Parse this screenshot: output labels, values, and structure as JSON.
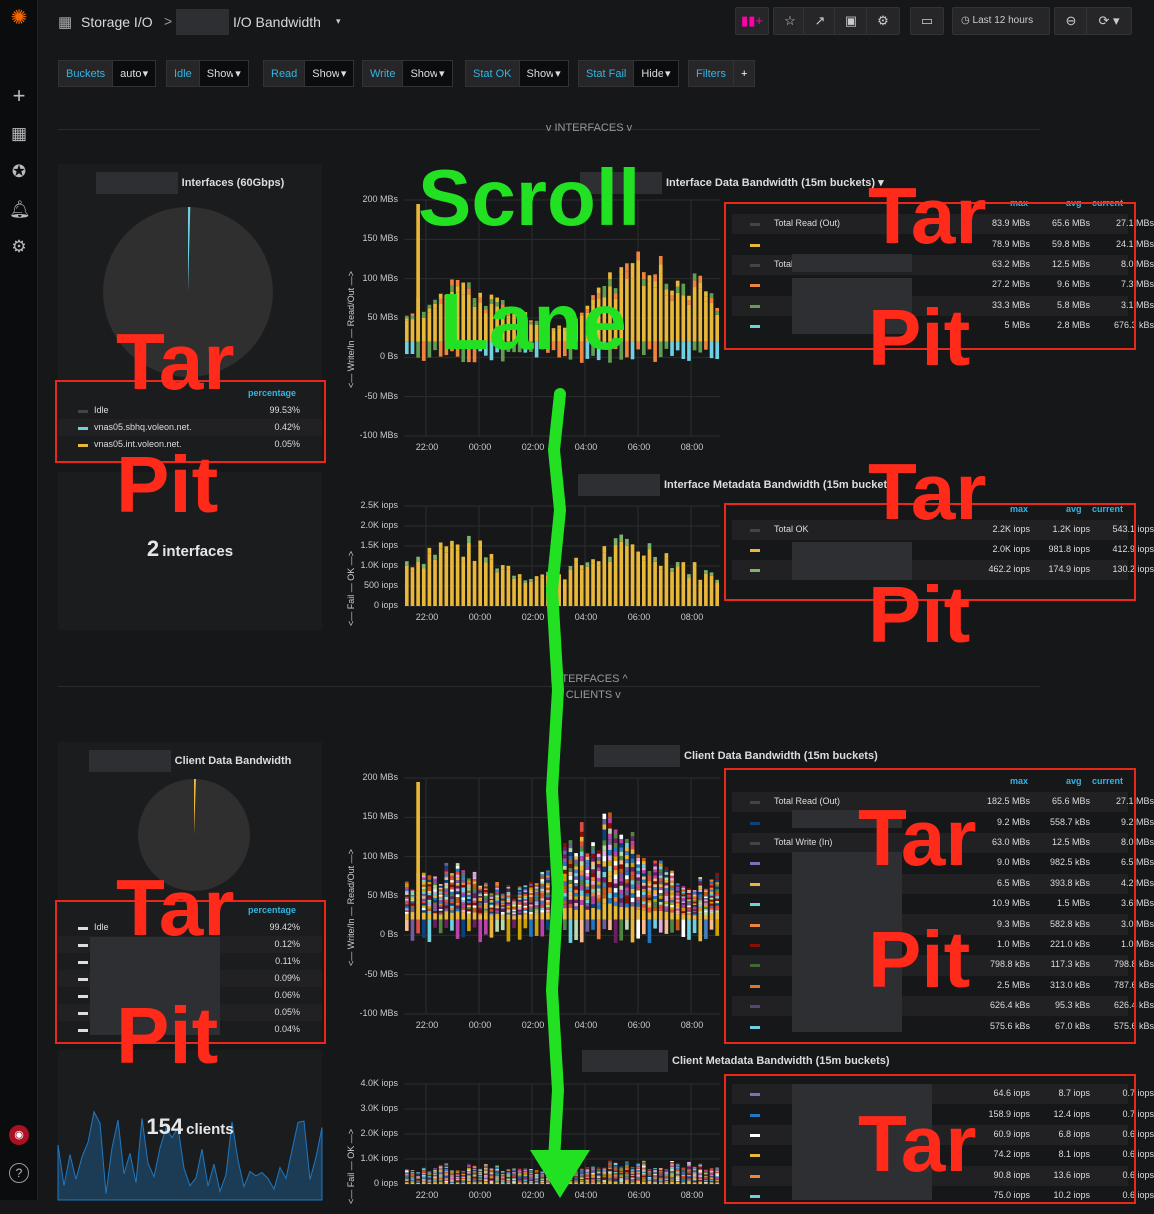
{
  "topbar": {
    "breadcrumb": "Storage I/O",
    "separator": ">",
    "title": "I/O Bandwidth",
    "time_range": "Last 12 hours"
  },
  "variables": [
    {
      "label": "Buckets",
      "value": "auto"
    },
    {
      "label": "Idle",
      "value": "Show"
    },
    {
      "label": "Read",
      "value": "Show"
    },
    {
      "label": "Write",
      "value": "Show"
    },
    {
      "label": "Stat OK",
      "value": "Show"
    },
    {
      "label": "Stat Fail",
      "value": "Hide"
    },
    {
      "label": "Filters",
      "value": "+"
    }
  ],
  "rows": {
    "interfaces_open": "v INTERFACES v",
    "interfaces_closed": "INTERFACES ^",
    "clients": "v CLIENTS v"
  },
  "interfaces": {
    "pie_title": "Interfaces (60Gbps)",
    "pie_legend_header": "percentage",
    "pie_legend": [
      {
        "name": "Idle",
        "value": "99.53%",
        "color": "#444444"
      },
      {
        "name": "vnas05.sbhq.voleon.net.",
        "value": "0.42%",
        "color": "#6ed0e0"
      },
      {
        "name": "vnas05.int.voleon.net.",
        "value": "0.05%",
        "color": "#eab839"
      }
    ],
    "stat_value": "2",
    "stat_unit": "interfaces",
    "data_title": "Interface Data Bandwidth (15m buckets)",
    "data_yticks": [
      "200 MBs",
      "150 MBs",
      "100 MBs",
      "50 MBs",
      "0 Bs",
      "-50 MBs",
      "-100 MBs"
    ],
    "data_ylabel": "<— Write/In — Read/Out —>",
    "xticks": [
      "22:00",
      "00:00",
      "02:00",
      "04:00",
      "06:00",
      "08:00"
    ],
    "data_legend_headers": [
      "max",
      "avg",
      "current"
    ],
    "data_legend": [
      {
        "name": "Total Read (Out)",
        "max": "83.9 MBs",
        "avg": "65.6 MBs",
        "current": "27.1 MBs",
        "color": "#444444"
      },
      {
        "name": "",
        "max": "78.9 MBs",
        "avg": "59.8 MBs",
        "current": "24.1 MBs",
        "color": "#eab839"
      },
      {
        "name": "Total Write (In)",
        "max": "63.2 MBs",
        "avg": "12.5 MBs",
        "current": "8.0 MBs",
        "color": "#444444"
      },
      {
        "name": "",
        "max": "27.2 MBs",
        "avg": "9.6 MBs",
        "current": "7.3 MBs",
        "color": "#ef843c"
      },
      {
        "name": "",
        "max": "33.3 MBs",
        "avg": "5.8 MBs",
        "current": "3.1 MBs",
        "color": "#629e51"
      },
      {
        "name": "",
        "max": "5 MBs",
        "avg": "2.8 MBs",
        "current": "676.3 kBs",
        "color": "#6ed0e0"
      }
    ],
    "meta_title": "Interface Metadata Bandwidth (15m buckets)",
    "meta_yticks": [
      "2.5K iops",
      "2.0K iops",
      "1.5K iops",
      "1.0K iops",
      "500 iops",
      "0 iops"
    ],
    "meta_ylabel": "<— Fail — OK —>",
    "meta_legend_headers": [
      "max",
      "avg",
      "current"
    ],
    "meta_legend": [
      {
        "name": "Total OK",
        "max": "2.2K iops",
        "avg": "1.2K iops",
        "current": "543.1 iops",
        "color": "#444444"
      },
      {
        "name": "",
        "max": "2.0K iops",
        "avg": "981.8 iops",
        "current": "412.9 iops",
        "color": "#eab839"
      },
      {
        "name": "",
        "max": "462.2 iops",
        "avg": "174.9 iops",
        "current": "130.2 iops",
        "color": "#7eb26d"
      }
    ]
  },
  "clients": {
    "pie_title": "Client Data Bandwidth",
    "pie_legend_header": "percentage",
    "pie_legend": [
      {
        "name": "Idle",
        "value": "99.42%"
      },
      {
        "name": "",
        "value": "0.12%"
      },
      {
        "name": "",
        "value": "0.11%"
      },
      {
        "name": "",
        "value": "0.09%"
      },
      {
        "name": "",
        "value": "0.06%"
      },
      {
        "name": "",
        "value": "0.05%"
      },
      {
        "name": "",
        "value": "0.04%"
      }
    ],
    "stat_value": "154",
    "stat_unit": "clients",
    "data_title": "Client Data Bandwidth (15m buckets)",
    "data_yticks": [
      "200 MBs",
      "150 MBs",
      "100 MBs",
      "50 MBs",
      "0 Bs",
      "-50 MBs",
      "-100 MBs"
    ],
    "data_legend_headers": [
      "max",
      "avg",
      "current"
    ],
    "data_legend": [
      {
        "name": "Total Read (Out)",
        "max": "182.5 MBs",
        "avg": "65.6 MBs",
        "current": "27.1 MBs",
        "color": "#444444"
      },
      {
        "name": "",
        "max": "9.2 MBs",
        "avg": "558.7 kBs",
        "current": "9.2 MBs",
        "color": "#0a437c"
      },
      {
        "name": "Total Write (In)",
        "max": "63.0 MBs",
        "avg": "12.5 MBs",
        "current": "8.0 MBs",
        "color": "#444444"
      },
      {
        "name": "",
        "max": "9.0 MBs",
        "avg": "982.5 kBs",
        "current": "6.5 MBs",
        "color": "#806eb7"
      },
      {
        "name": "",
        "max": "6.5 MBs",
        "avg": "393.8 kBs",
        "current": "4.2 MBs",
        "color": "#eab839"
      },
      {
        "name": "",
        "max": "10.9 MBs",
        "avg": "1.5 MBs",
        "current": "3.6 MBs",
        "color": "#6ed0e0"
      },
      {
        "name": "",
        "max": "9.3 MBs",
        "avg": "582.8 kBs",
        "current": "3.0 MBs",
        "color": "#ef843c"
      },
      {
        "name": "",
        "max": "1.0 MBs",
        "avg": "221.0 kBs",
        "current": "1.0 MBs",
        "color": "#890f02"
      },
      {
        "name": "",
        "max": "798.8 kBs",
        "avg": "117.3 kBs",
        "current": "798.8 kBs",
        "color": "#3f6833"
      },
      {
        "name": "",
        "max": "2.5 MBs",
        "avg": "313.0 kBs",
        "current": "787.6 kBs",
        "color": "#e0752d"
      },
      {
        "name": "",
        "max": "626.4 kBs",
        "avg": "95.3 kBs",
        "current": "626.4 kBs",
        "color": "#584477"
      },
      {
        "name": "",
        "max": "575.6 kBs",
        "avg": "67.0 kBs",
        "current": "575.6 kBs",
        "color": "#6ed0e0"
      }
    ],
    "meta_title": "Client Metadata Bandwidth (15m buckets)",
    "meta_yticks": [
      "4.0K iops",
      "3.0K iops",
      "2.0K iops",
      "1.0K iops",
      "0 iops"
    ],
    "meta_legend": [
      {
        "max": "64.6 iops",
        "avg": "8.7 iops",
        "current": "0.7 iops",
        "color": "#806eb7"
      },
      {
        "max": "158.9 iops",
        "avg": "12.4 iops",
        "current": "0.7 iops",
        "color": "#1f78c1"
      },
      {
        "max": "60.9 iops",
        "avg": "6.8 iops",
        "current": "0.6 iops",
        "color": "#ffffff"
      },
      {
        "max": "74.2 iops",
        "avg": "8.1 iops",
        "current": "0.6 iops",
        "color": "#eab839"
      },
      {
        "max": "90.8 iops",
        "avg": "13.6 iops",
        "current": "0.6 iops",
        "color": "#ef843c"
      },
      {
        "max": "75.0 iops",
        "avg": "10.2 iops",
        "current": "0.6 iops",
        "color": "#6ed0e0"
      }
    ]
  },
  "overlay": {
    "scroll": "Scroll",
    "lane": "Lane",
    "tar": "Tar",
    "pit": "Pit"
  }
}
